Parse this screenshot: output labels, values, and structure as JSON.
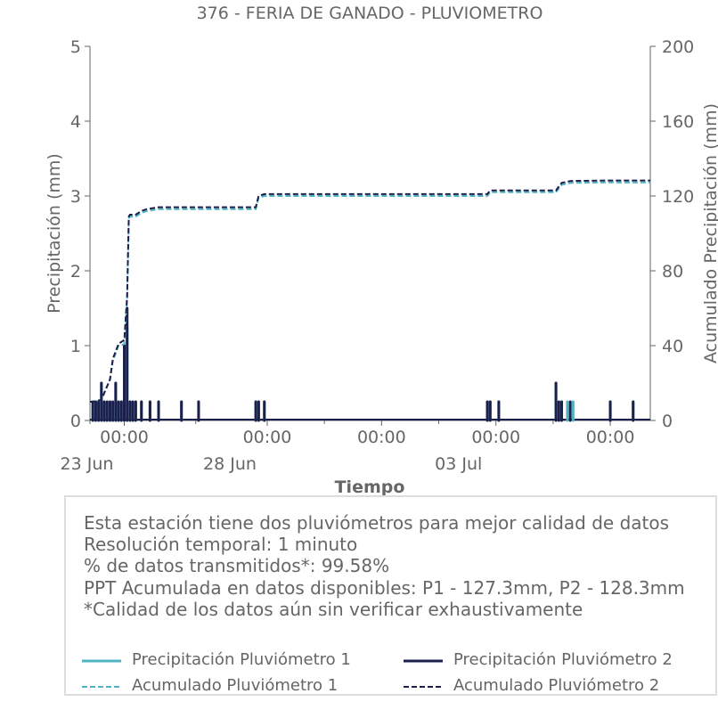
{
  "chart_data": {
    "type": "line",
    "title": "376 - FERIA DE GANADO - PLUVIOMETRO",
    "xlabel": "Tiempo",
    "ylabel_left": "Precipitación (mm)",
    "ylabel_right": "Acumulado Precipitación (mm)",
    "ylim_left": [
      0,
      5
    ],
    "ylim_right": [
      0,
      200
    ],
    "yticks_left": [
      "0",
      "1",
      "2",
      "3",
      "4",
      "5"
    ],
    "yticks_right": [
      "0",
      "40",
      "80",
      "120",
      "160",
      "200"
    ],
    "x_range_days": [
      -0.6,
      9.2
    ],
    "x_ticks": [
      {
        "day": 0.0,
        "label": "00:00",
        "date": "23 Jun"
      },
      {
        "day": 2.5,
        "label": "00:00",
        "date": "28 Jun"
      },
      {
        "day": 4.5,
        "label": "00:00",
        "date": ""
      },
      {
        "day": 6.5,
        "label": "00:00",
        "date": "03 Jul"
      },
      {
        "day": 8.5,
        "label": "00:00",
        "date": ""
      }
    ],
    "series": [
      {
        "name": "Precipitación Pluviómetro 1",
        "axis": "left",
        "kind": "bar",
        "color": "#4fb3c1",
        "x": [
          -0.55,
          -0.5,
          -0.45,
          -0.4,
          -0.35,
          -0.3,
          -0.25,
          -0.2,
          -0.15,
          -0.1,
          -0.05,
          0.0,
          0.05,
          0.1,
          0.15,
          0.2,
          0.3,
          0.45,
          0.6,
          1.0,
          1.3,
          2.3,
          2.35,
          2.45,
          6.35,
          6.4,
          6.55,
          7.55,
          7.6,
          7.65,
          7.75,
          7.85,
          8.5,
          8.9
        ],
        "y": [
          0.25,
          0.25,
          0.25,
          0.5,
          0.25,
          0.25,
          0.25,
          0.25,
          0.5,
          0.25,
          0.25,
          1.0,
          1.25,
          0.25,
          0.25,
          0.25,
          0.25,
          0.25,
          0.25,
          0.25,
          0.25,
          0.25,
          0.25,
          0.25,
          0.25,
          0.25,
          0.25,
          0.5,
          0.25,
          0.25,
          0.25,
          0.25,
          0.25,
          0.25
        ]
      },
      {
        "name": "Precipitación Pluviómetro 2",
        "axis": "left",
        "kind": "bar",
        "color": "#1b1f4b",
        "x": [
          -0.55,
          -0.5,
          -0.45,
          -0.4,
          -0.35,
          -0.3,
          -0.25,
          -0.2,
          -0.15,
          -0.1,
          -0.05,
          0.0,
          0.05,
          0.1,
          0.15,
          0.2,
          0.3,
          0.45,
          0.6,
          1.0,
          1.3,
          2.3,
          2.35,
          2.45,
          6.35,
          6.4,
          6.55,
          7.55,
          7.6,
          7.65,
          7.8,
          8.5,
          8.9
        ],
        "y": [
          0.25,
          0.25,
          0.25,
          0.5,
          0.25,
          0.25,
          0.25,
          0.25,
          0.5,
          0.25,
          0.25,
          1.0,
          1.5,
          0.25,
          0.25,
          0.25,
          0.25,
          0.25,
          0.25,
          0.25,
          0.25,
          0.25,
          0.25,
          0.25,
          0.25,
          0.25,
          0.25,
          0.5,
          0.25,
          0.25,
          0.25,
          0.25,
          0.25
        ]
      },
      {
        "name": "Acumulado Pluviómetro 1",
        "axis": "right",
        "kind": "dashed",
        "color": "#4fb3c1",
        "x": [
          -0.6,
          -0.55,
          -0.4,
          -0.25,
          -0.2,
          -0.1,
          -0.05,
          0.0,
          0.05,
          0.08,
          0.1,
          0.2,
          0.3,
          0.4,
          0.6,
          1.0,
          2.3,
          2.35,
          2.45,
          6.35,
          6.4,
          6.55,
          7.55,
          7.65,
          7.8,
          8.5,
          9.2
        ],
        "y": [
          10,
          10,
          11,
          22,
          32,
          40,
          40,
          41,
          65,
          108,
          109,
          109,
          111,
          112,
          113,
          113,
          113,
          119,
          120,
          120,
          122,
          122,
          122,
          126,
          127,
          127.3,
          127.3
        ]
      },
      {
        "name": "Acumulado Pluviómetro 2",
        "axis": "right",
        "kind": "dashed",
        "color": "#1b1f4b",
        "x": [
          -0.6,
          -0.55,
          -0.4,
          -0.25,
          -0.2,
          -0.1,
          -0.05,
          0.0,
          0.05,
          0.08,
          0.1,
          0.2,
          0.3,
          0.4,
          0.6,
          1.0,
          2.3,
          2.35,
          2.45,
          6.35,
          6.4,
          6.55,
          7.55,
          7.65,
          7.8,
          8.5,
          9.2
        ],
        "y": [
          10,
          10,
          11,
          22,
          33,
          41,
          42,
          43,
          66,
          109,
          110,
          110,
          112,
          113,
          114,
          114,
          114,
          120,
          121,
          121,
          123,
          123,
          123,
          127,
          128,
          128.3,
          128.3
        ]
      }
    ],
    "legend_placement": "bottom"
  },
  "info": {
    "lines": [
      "Esta estación tiene dos pluviómetros para mejor calidad de datos",
      "Resolución temporal: 1 minuto",
      "% de datos transmitidos*: 99.58%",
      "PPT Acumulada en datos disponibles: P1 - 127.3mm, P2 - 128.3mm",
      "*Calidad de los datos aún sin verificar exhaustivamente"
    ]
  },
  "legend": [
    {
      "label": "Precipitación Pluviómetro 1",
      "color": "#4fb3c1",
      "style": "solid"
    },
    {
      "label": "Precipitación Pluviómetro 2",
      "color": "#1b1f4b",
      "style": "solid"
    },
    {
      "label": "Acumulado Pluviómetro 1",
      "color": "#4fb3c1",
      "style": "dashed"
    },
    {
      "label": "Acumulado Pluviómetro 2",
      "color": "#1b1f4b",
      "style": "dashed"
    }
  ]
}
